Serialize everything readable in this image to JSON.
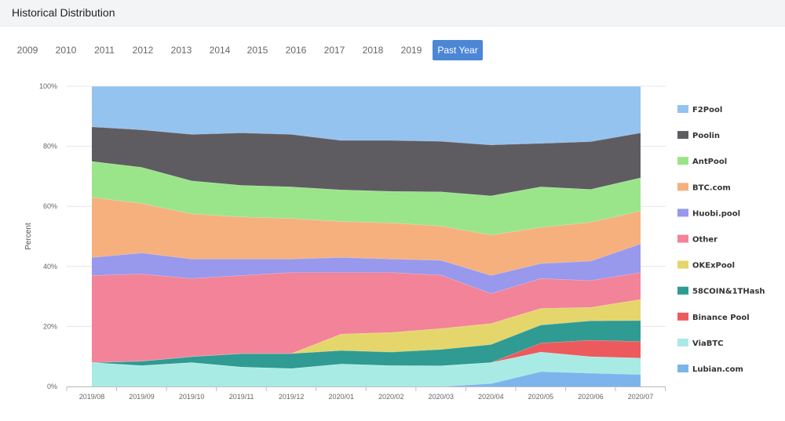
{
  "header": {
    "title": "Historical Distribution"
  },
  "year_tabs": {
    "items": [
      "2009",
      "2010",
      "2011",
      "2012",
      "2013",
      "2014",
      "2015",
      "2016",
      "2017",
      "2018",
      "2019",
      "Past Year"
    ],
    "active": "Past Year"
  },
  "chart_data": {
    "type": "area",
    "stacked": "percent",
    "title": "",
    "xlabel": "",
    "ylabel": "Percent",
    "ylim": [
      0,
      100
    ],
    "yticks": [
      "0%",
      "20%",
      "40%",
      "60%",
      "80%",
      "100%"
    ],
    "legend_position": "right",
    "categories": [
      "2019/08",
      "2019/09",
      "2019/10",
      "2019/11",
      "2019/12",
      "2020/01",
      "2020/02",
      "2020/03",
      "2020/04",
      "2020/05",
      "2020/06",
      "2020/07"
    ],
    "series": [
      {
        "name": "Lubian.com",
        "color": "#7cb5ec",
        "values": [
          0,
          0,
          0,
          0,
          0,
          0,
          0,
          0,
          1,
          5,
          4.5,
          4
        ]
      },
      {
        "name": "ViaBTC",
        "color": "#a8ebe4",
        "values": [
          8,
          7,
          8,
          6.5,
          6,
          7.5,
          7,
          7,
          7,
          6.5,
          5.5,
          5.5
        ]
      },
      {
        "name": "Binance Pool",
        "color": "#ec5a5e",
        "values": [
          0,
          0,
          0,
          0,
          0,
          0,
          0,
          0,
          0,
          3,
          5.5,
          5.5
        ]
      },
      {
        "name": "58COIN&1THash",
        "color": "#2f9b92",
        "values": [
          0,
          1.5,
          2,
          4.5,
          5,
          4.5,
          4.5,
          5.5,
          6,
          6,
          6.5,
          7
        ]
      },
      {
        "name": "OKExPool",
        "color": "#e4d66b",
        "values": [
          0,
          0,
          0,
          0,
          0,
          5.5,
          6.5,
          7,
          7,
          5.5,
          4.5,
          7
        ]
      },
      {
        "name": "Other",
        "color": "#f28399",
        "values": [
          29,
          29,
          26,
          26,
          27,
          20.5,
          20,
          18,
          10,
          10,
          9,
          9
        ]
      },
      {
        "name": "Huobi.pool",
        "color": "#9898ec",
        "values": [
          6,
          7,
          6.5,
          5.5,
          4.5,
          5,
          4.5,
          5,
          6,
          5,
          6.5,
          9.5
        ]
      },
      {
        "name": "BTC.com",
        "color": "#f5b07e",
        "values": [
          20,
          16.5,
          15,
          14,
          13.5,
          12,
          12,
          11.5,
          13.5,
          12,
          13,
          11
        ]
      },
      {
        "name": "AntPool",
        "color": "#9ae58a",
        "values": [
          12,
          12,
          11,
          10.5,
          10.5,
          10.5,
          10.5,
          11.5,
          13,
          13.5,
          11,
          11
        ]
      },
      {
        "name": "Poolin",
        "color": "#5e5c61",
        "values": [
          11.5,
          12.5,
          15.5,
          17.5,
          17.5,
          16.5,
          17,
          17,
          17,
          14.5,
          16,
          15
        ]
      },
      {
        "name": "F2Pool",
        "color": "#95c3f0",
        "values": [
          13.5,
          14.5,
          16,
          15.5,
          16,
          18,
          18,
          18.5,
          19.5,
          19,
          18.5,
          15.5
        ]
      }
    ],
    "legend_order": [
      "F2Pool",
      "Poolin",
      "AntPool",
      "BTC.com",
      "Huobi.pool",
      "Other",
      "OKExPool",
      "58COIN&1THash",
      "Binance Pool",
      "ViaBTC",
      "Lubian.com"
    ]
  }
}
